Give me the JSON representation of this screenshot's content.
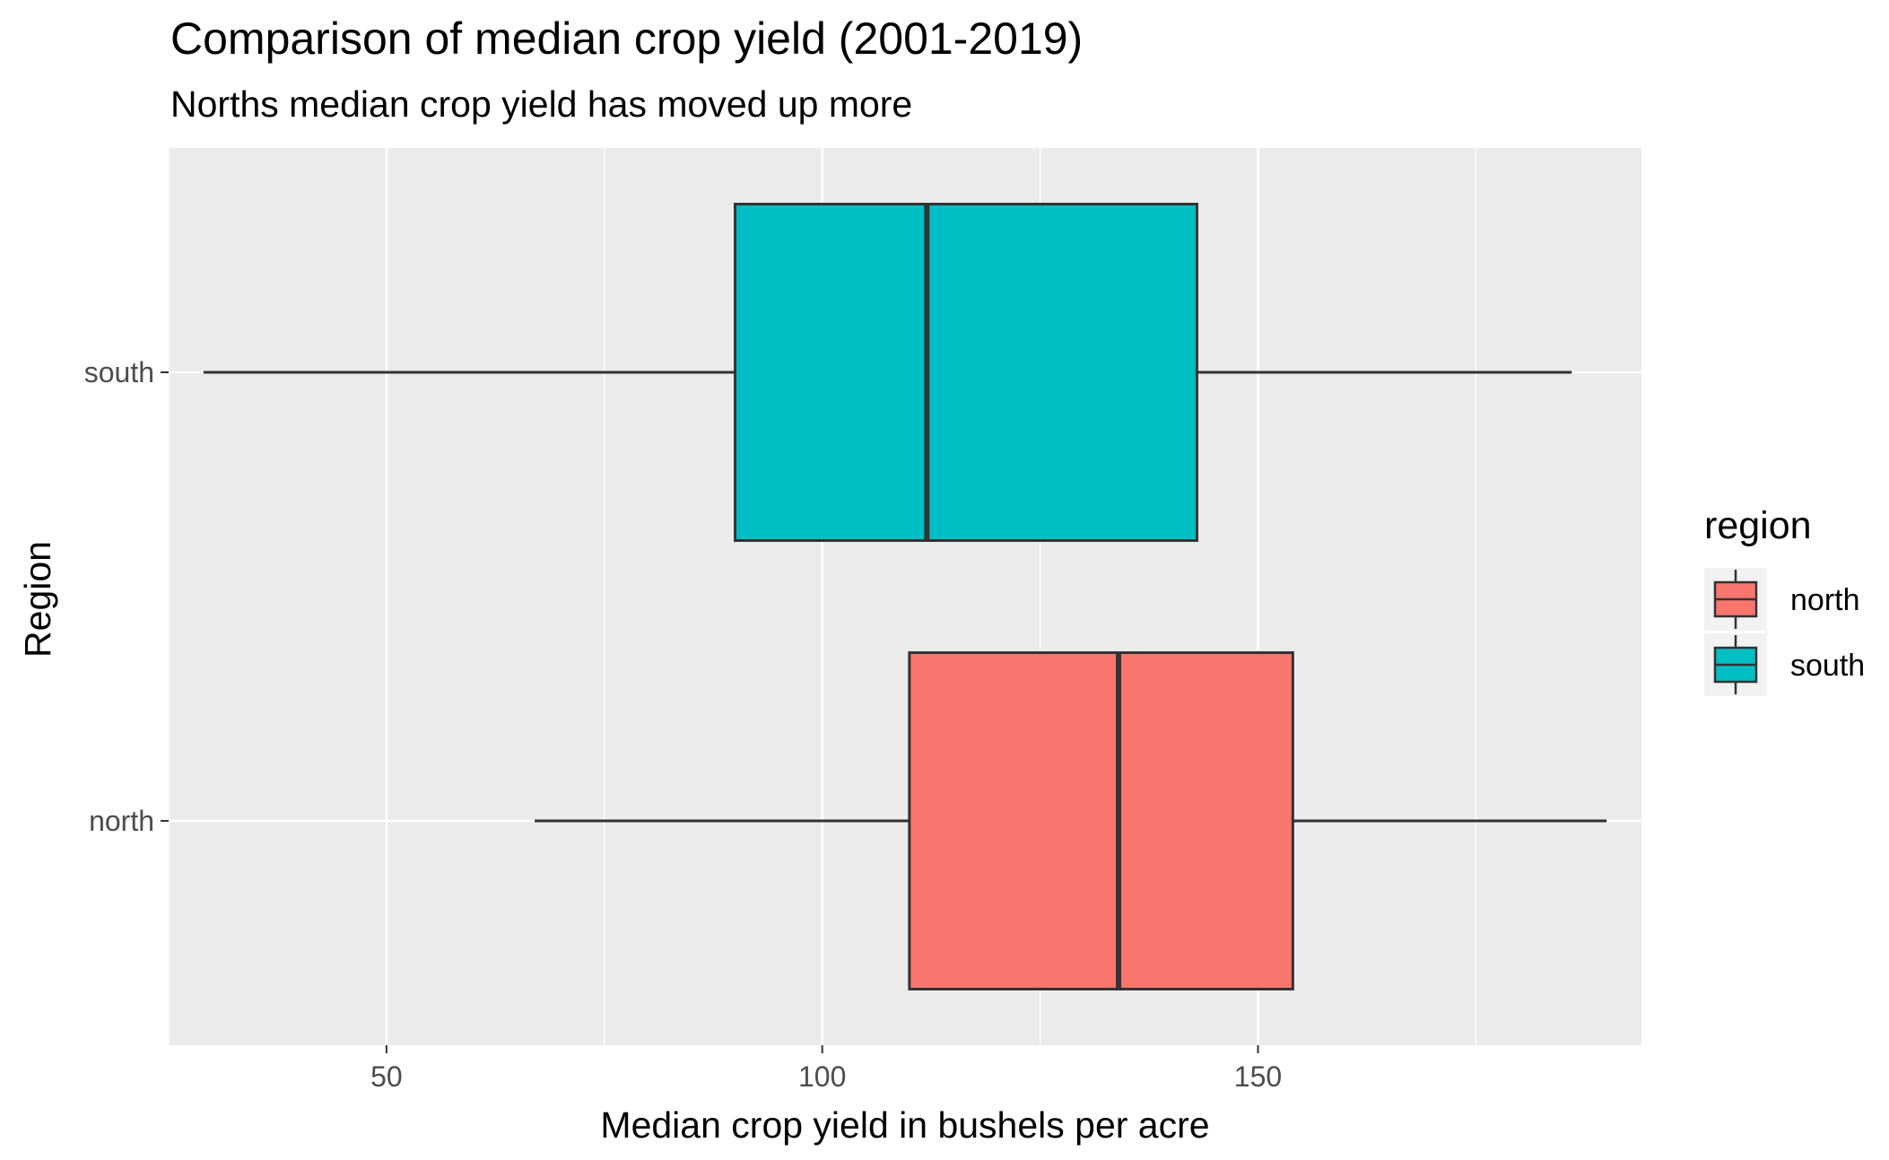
{
  "chart_data": {
    "type": "boxplot",
    "orientation": "horizontal",
    "title": "Comparison of median crop yield (2001-2019)",
    "subtitle": "Norths median crop yield has moved up more",
    "xlabel": "Median crop yield in bushels per acre",
    "ylabel": "Region",
    "xlim": [
      25,
      194
    ],
    "x_ticks": [
      50,
      100,
      150
    ],
    "x_minor_ticks": [
      25,
      75,
      125,
      175
    ],
    "y_ticks": [
      "north",
      "south"
    ],
    "grid": true,
    "legend": {
      "title": "region",
      "placement": "right",
      "entries": [
        "north",
        "south"
      ]
    },
    "series": [
      {
        "name": "south",
        "color": "#00BFC4",
        "whisker_low": 29,
        "q1": 90,
        "median": 112,
        "q3": 143,
        "whisker_high": 186
      },
      {
        "name": "north",
        "color": "#F8766D",
        "whisker_low": 67,
        "q1": 110,
        "median": 134,
        "q3": 154,
        "whisker_high": 190
      }
    ],
    "colors": {
      "panel_bg": "#EBEBEB",
      "grid": "#FFFFFF",
      "outline": "#333333"
    }
  }
}
